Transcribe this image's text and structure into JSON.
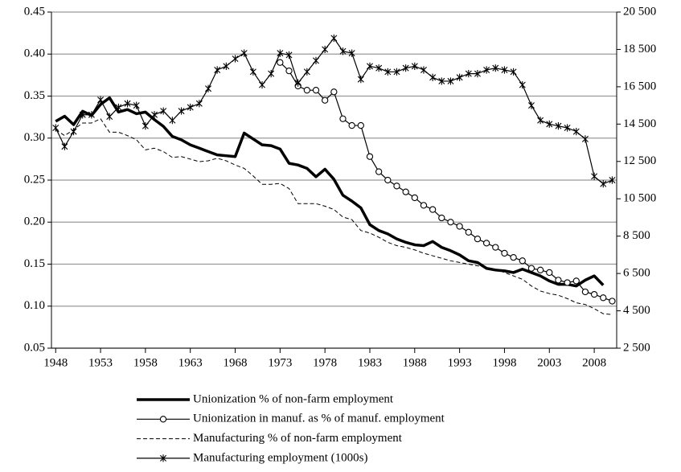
{
  "chart_data": {
    "type": "line",
    "x": [
      1948,
      1949,
      1950,
      1951,
      1952,
      1953,
      1954,
      1955,
      1956,
      1957,
      1958,
      1959,
      1960,
      1961,
      1962,
      1963,
      1964,
      1965,
      1966,
      1967,
      1968,
      1969,
      1970,
      1971,
      1972,
      1973,
      1974,
      1975,
      1976,
      1977,
      1978,
      1979,
      1980,
      1981,
      1982,
      1983,
      1984,
      1985,
      1986,
      1987,
      1988,
      1989,
      1990,
      1991,
      1992,
      1993,
      1994,
      1995,
      1996,
      1997,
      1998,
      1999,
      2000,
      2001,
      2002,
      2003,
      2004,
      2005,
      2006,
      2007,
      2008,
      2009,
      2010
    ],
    "xlim": [
      1947.8,
      2010.5
    ],
    "xticks": [
      1948,
      1953,
      1958,
      1963,
      1968,
      1973,
      1978,
      1983,
      1988,
      1993,
      1998,
      2003,
      2008
    ],
    "ylim": [
      0.05,
      0.45
    ],
    "yticks": [
      0.05,
      {
        "value": 0.1,
        "label": "0.10"
      },
      0.15,
      {
        "value": 0.2,
        "label": "0.20"
      },
      0.25,
      {
        "value": 0.3,
        "label": "0.30"
      },
      0.35,
      {
        "value": 0.4,
        "label": "0.40"
      },
      0.45
    ],
    "y2lim": [
      2500,
      20500
    ],
    "y2ticks": [
      {
        "value": 2500,
        "label": "2 500"
      },
      {
        "value": 4500,
        "label": "4 500"
      },
      {
        "value": 6500,
        "label": "6 500"
      },
      {
        "value": 8500,
        "label": "8 500"
      },
      {
        "value": 10500,
        "label": "10 500"
      },
      {
        "value": 12500,
        "label": "12 500"
      },
      {
        "value": 14500,
        "label": "14 500"
      },
      {
        "value": 16500,
        "label": "16 500"
      },
      {
        "value": 18500,
        "label": "18 500"
      },
      {
        "value": 20500,
        "label": "20 500"
      }
    ],
    "grid": true,
    "legend": "bottom",
    "series": [
      {
        "name": "Unionization % of non-farm employment",
        "color": "#000000",
        "style": "solid",
        "width": 3.5,
        "values": [
          0.32,
          0.326,
          0.316,
          0.332,
          0.327,
          0.34,
          0.348,
          0.331,
          0.334,
          0.329,
          0.331,
          0.322,
          0.314,
          0.302,
          0.298,
          0.292,
          0.288,
          0.284,
          0.28,
          0.279,
          0.278,
          0.306,
          0.299,
          0.292,
          0.291,
          0.287,
          0.27,
          0.268,
          0.264,
          0.254,
          0.263,
          0.251,
          0.232,
          0.225,
          0.217,
          0.197,
          0.19,
          0.186,
          0.18,
          0.176,
          0.173,
          0.172,
          0.177,
          0.17,
          0.166,
          0.161,
          0.154,
          0.152,
          0.145,
          0.143,
          0.142,
          0.14,
          0.144,
          0.14,
          0.136,
          0.13,
          0.126,
          0.126,
          0.124,
          0.131,
          0.136,
          0.125,
          null
        ]
      },
      {
        "name": "Unionization in manuf. as % of manuf. employment",
        "color": "#000000",
        "style": "solid",
        "width": 1.2,
        "marker": "circle",
        "values": [
          null,
          null,
          null,
          null,
          null,
          null,
          null,
          null,
          null,
          null,
          null,
          null,
          null,
          null,
          null,
          null,
          null,
          null,
          null,
          null,
          null,
          null,
          null,
          null,
          null,
          0.39,
          0.38,
          0.362,
          0.357,
          0.357,
          0.345,
          0.355,
          0.323,
          0.315,
          0.315,
          0.278,
          0.26,
          0.25,
          0.243,
          0.236,
          0.229,
          0.22,
          0.215,
          0.205,
          0.2,
          0.195,
          0.188,
          0.18,
          0.175,
          0.17,
          0.163,
          0.158,
          0.154,
          0.145,
          0.143,
          0.14,
          0.131,
          0.128,
          0.13,
          0.117,
          0.114,
          0.11,
          0.106
        ]
      },
      {
        "name": "Manufacturing % of non-farm employment",
        "color": "#000000",
        "style": "dashed",
        "width": 1,
        "values": [
          0.31,
          0.303,
          0.31,
          0.318,
          0.318,
          0.323,
          0.307,
          0.307,
          0.303,
          0.298,
          0.286,
          0.288,
          0.284,
          0.277,
          0.278,
          0.275,
          0.272,
          0.273,
          0.276,
          0.273,
          0.268,
          0.264,
          0.255,
          0.245,
          0.245,
          0.246,
          0.24,
          0.222,
          0.222,
          0.222,
          0.219,
          0.215,
          0.206,
          0.203,
          0.19,
          0.187,
          0.182,
          0.176,
          0.172,
          0.17,
          0.167,
          0.163,
          0.16,
          0.157,
          0.154,
          0.152,
          0.15,
          0.148,
          0.146,
          0.144,
          0.14,
          0.136,
          0.132,
          0.124,
          0.118,
          0.115,
          0.113,
          0.109,
          0.104,
          0.102,
          0.097,
          0.091,
          0.09
        ]
      },
      {
        "name": "Manufacturing employment (1000s)",
        "color": "#000000",
        "style": "solid",
        "width": 1.2,
        "marker": "star",
        "axis": "y2",
        "values": [
          14300,
          13300,
          14100,
          15000,
          15000,
          15800,
          14900,
          15400,
          15600,
          15500,
          14400,
          15000,
          15200,
          14700,
          15200,
          15400,
          15600,
          16400,
          17400,
          17600,
          18000,
          18300,
          17300,
          16600,
          17200,
          18300,
          18200,
          16700,
          17300,
          17900,
          18500,
          19100,
          18400,
          18300,
          16900,
          17600,
          17500,
          17300,
          17300,
          17500,
          17600,
          17400,
          17000,
          16800,
          16800,
          17000,
          17200,
          17200,
          17400,
          17500,
          17400,
          17300,
          16600,
          15500,
          14700,
          14500,
          14400,
          14300,
          14100,
          13700,
          11700,
          11300,
          11500
        ]
      }
    ]
  }
}
